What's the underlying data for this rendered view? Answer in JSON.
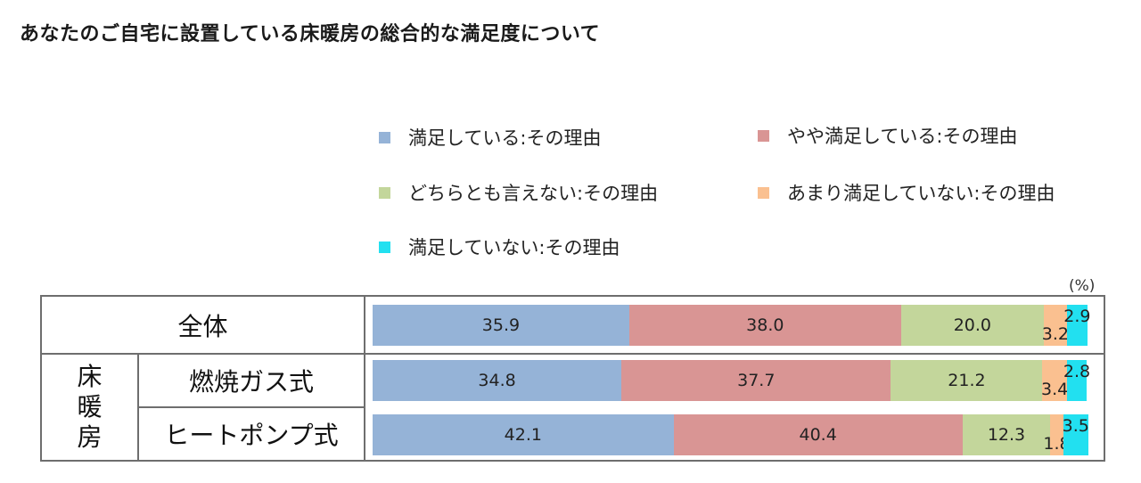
{
  "title": "あなたのご自宅に設置している床暖房の総合的な満足度について",
  "unit_label": "(%)",
  "group_label": [
    "床",
    "暖",
    "房"
  ],
  "legend": [
    {
      "label": "満足している:その理由",
      "color": "#95b3d7"
    },
    {
      "label": "やや満足している:その理由",
      "color": "#d99594"
    },
    {
      "label": "どちらとも言えない:その理由",
      "color": "#c3d69b"
    },
    {
      "label": "あまり満足していない:その理由",
      "color": "#fac090"
    },
    {
      "label": "満足していない:その理由",
      "color": "#22e0f0"
    }
  ],
  "chart_data": {
    "type": "bar",
    "orientation": "horizontal",
    "stacked": true,
    "normalized_percent": true,
    "unit": "%",
    "categories": [
      "全体",
      "燃焼ガス式",
      "ヒートポンプ式"
    ],
    "category_group": {
      "name": "床暖房",
      "members": [
        "燃焼ガス式",
        "ヒートポンプ式"
      ]
    },
    "series": [
      {
        "name": "満足している:その理由",
        "values": [
          35.9,
          34.8,
          42.1
        ]
      },
      {
        "name": "やや満足している:その理由",
        "values": [
          38.0,
          37.7,
          40.4
        ]
      },
      {
        "name": "どちらとも言えない:その理由",
        "values": [
          20.0,
          21.2,
          12.3
        ]
      },
      {
        "name": "あまり満足していない:その理由",
        "values": [
          3.2,
          3.4,
          1.8
        ]
      },
      {
        "name": "満足していない:その理由",
        "values": [
          2.9,
          2.8,
          3.5
        ]
      }
    ],
    "data_labels": [
      [
        "35.9",
        "38.0",
        "20.0",
        "3.2",
        "2.9"
      ],
      [
        "34.8",
        "37.7",
        "21.2",
        "3.4",
        "2.8"
      ],
      [
        "42.1",
        "40.4",
        "12.3",
        "1.8",
        "3.5"
      ]
    ],
    "legend_position": "top-right",
    "grid": false
  }
}
